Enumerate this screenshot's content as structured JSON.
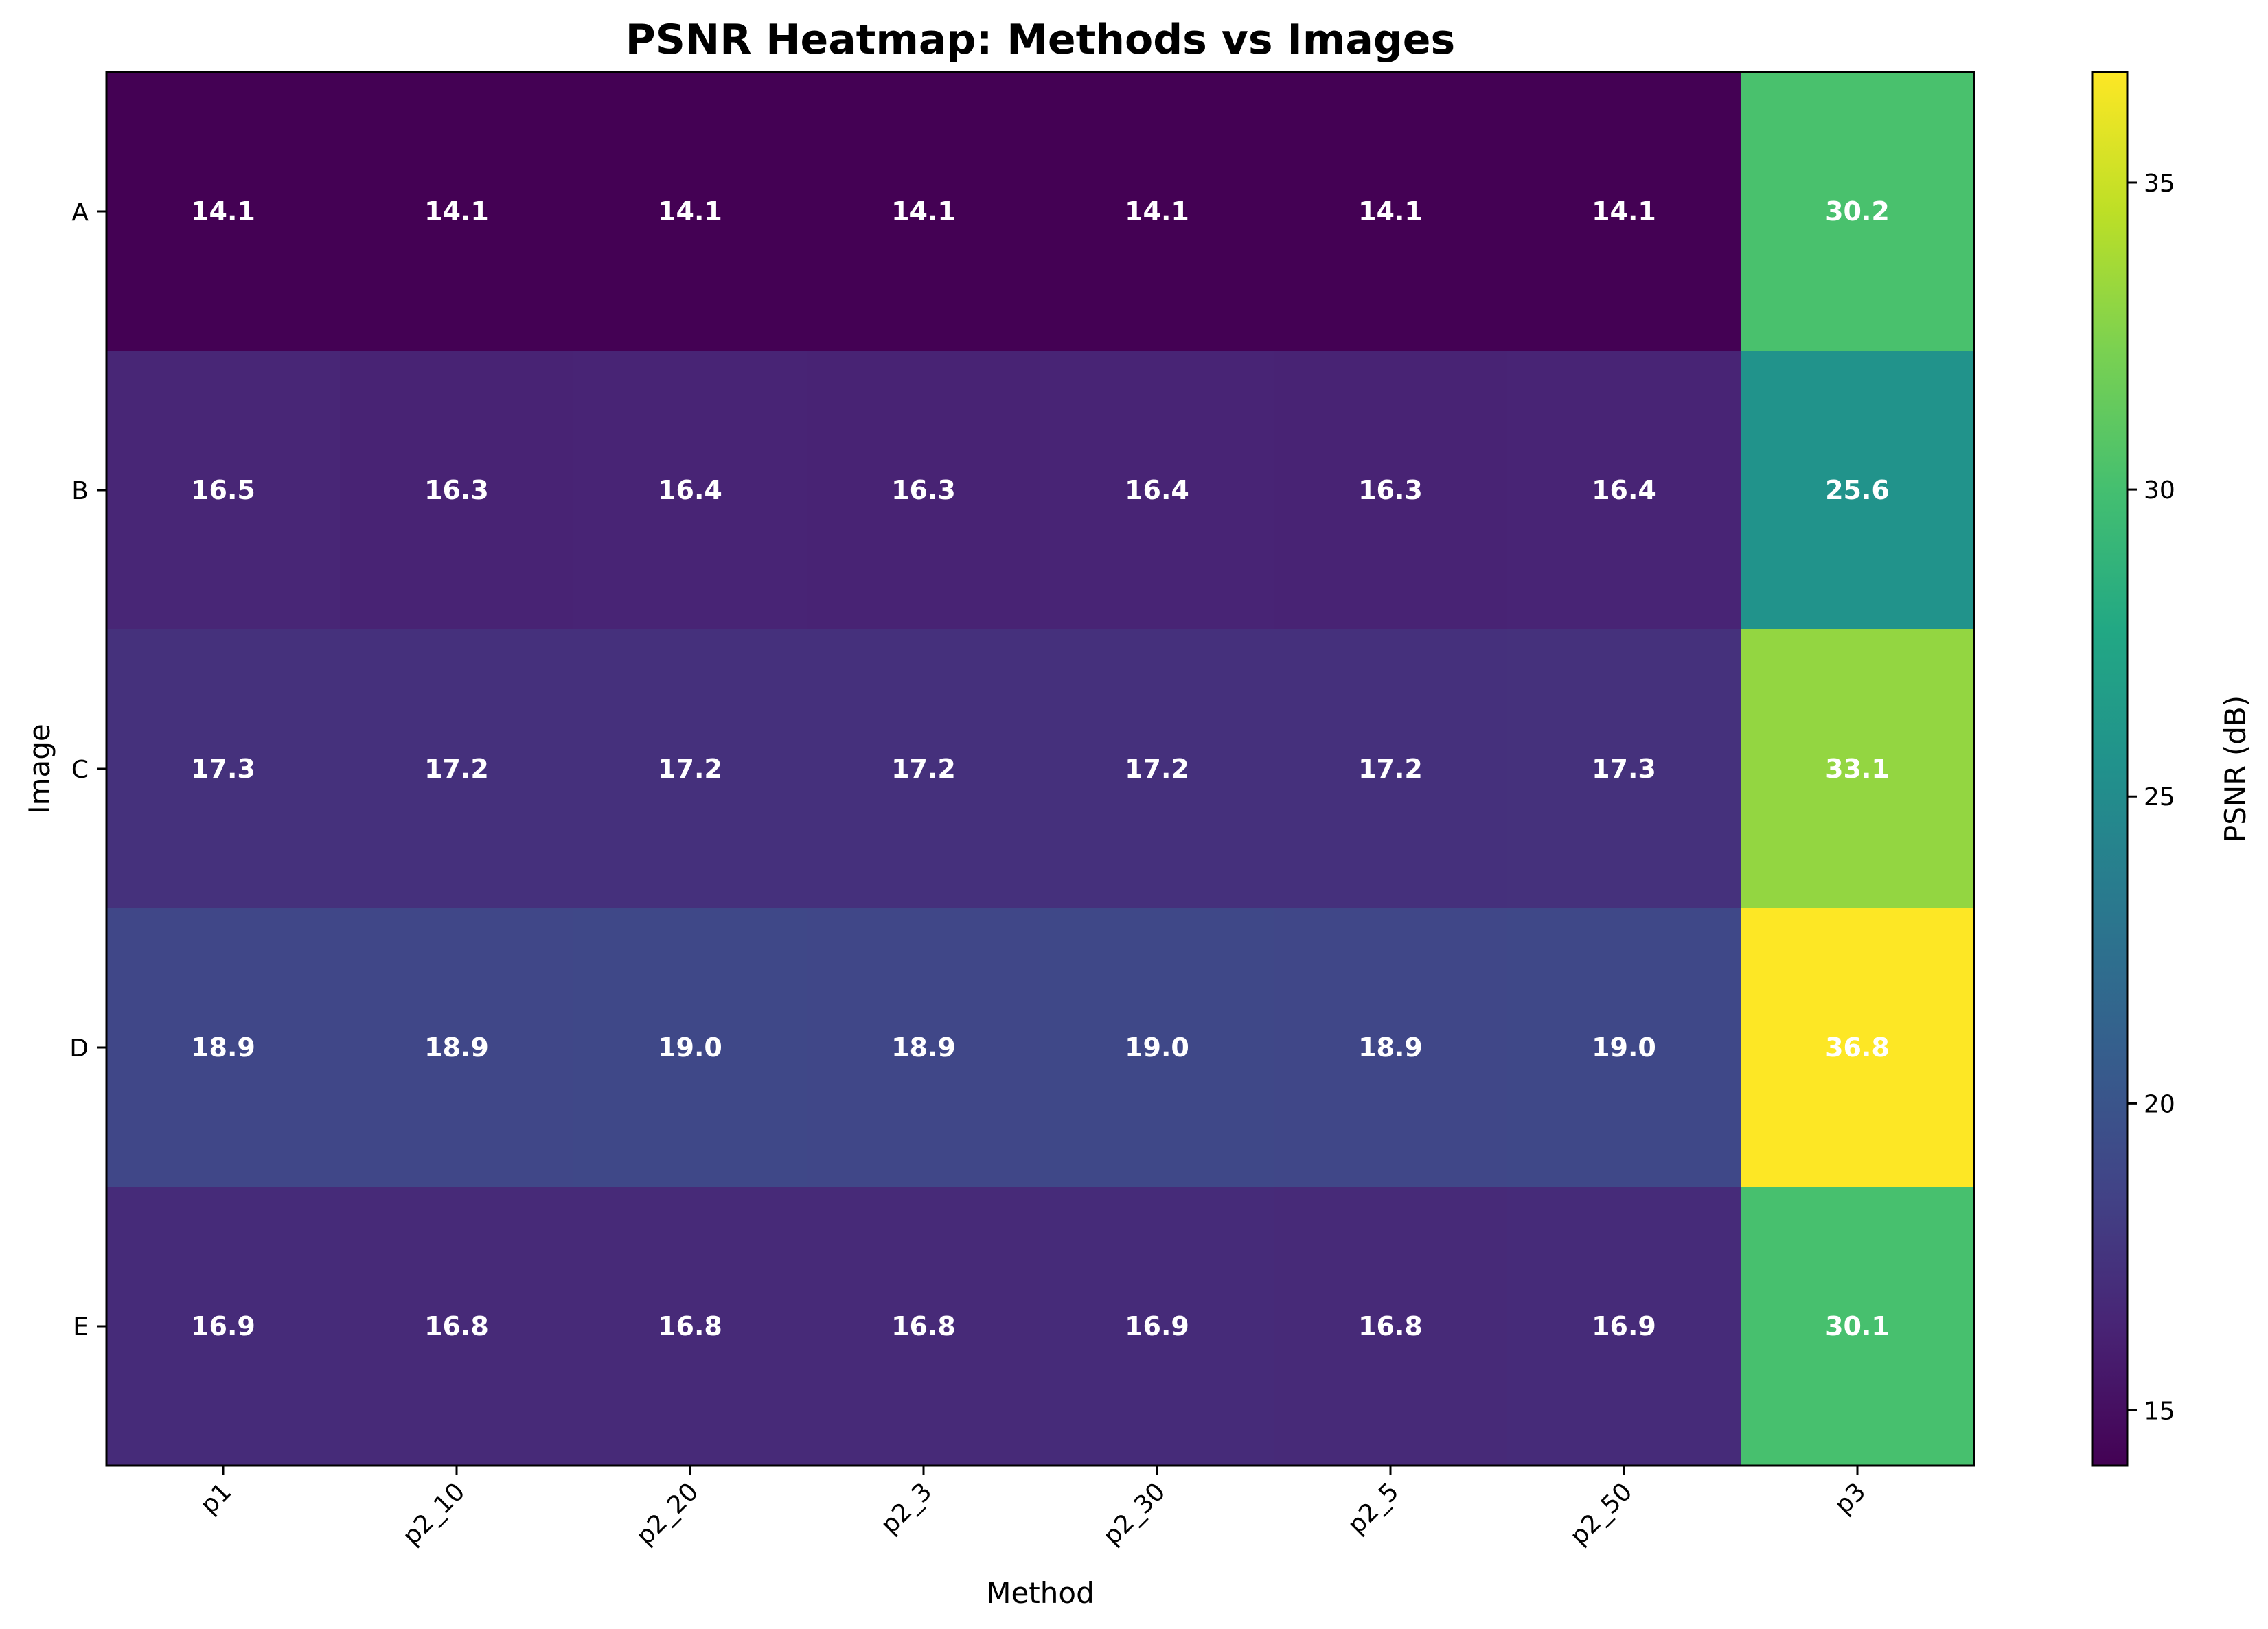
{
  "chart_data": {
    "type": "heatmap",
    "title": "PSNR Heatmap: Methods vs Images",
    "xlabel": "Method",
    "ylabel": "Image",
    "x_categories": [
      "p1",
      "p2_10",
      "p2_20",
      "p2_3",
      "p2_30",
      "p2_5",
      "p2_50",
      "p3"
    ],
    "y_categories": [
      "A",
      "B",
      "C",
      "D",
      "E"
    ],
    "values": [
      [
        14.1,
        14.1,
        14.1,
        14.1,
        14.1,
        14.1,
        14.1,
        30.2
      ],
      [
        16.5,
        16.3,
        16.4,
        16.3,
        16.4,
        16.3,
        16.4,
        25.6
      ],
      [
        17.3,
        17.2,
        17.2,
        17.2,
        17.2,
        17.2,
        17.3,
        33.1
      ],
      [
        18.9,
        18.9,
        19.0,
        18.9,
        19.0,
        18.9,
        19.0,
        36.8
      ],
      [
        16.9,
        16.8,
        16.8,
        16.8,
        16.9,
        16.8,
        16.9,
        30.1
      ]
    ],
    "cell_label_format": "0.0",
    "colormap": "viridis",
    "colorbar": {
      "label": "PSNR (dB)",
      "range": [
        14.1,
        36.8
      ],
      "ticks": [
        15,
        20,
        25,
        30,
        35
      ]
    },
    "grid": false
  }
}
